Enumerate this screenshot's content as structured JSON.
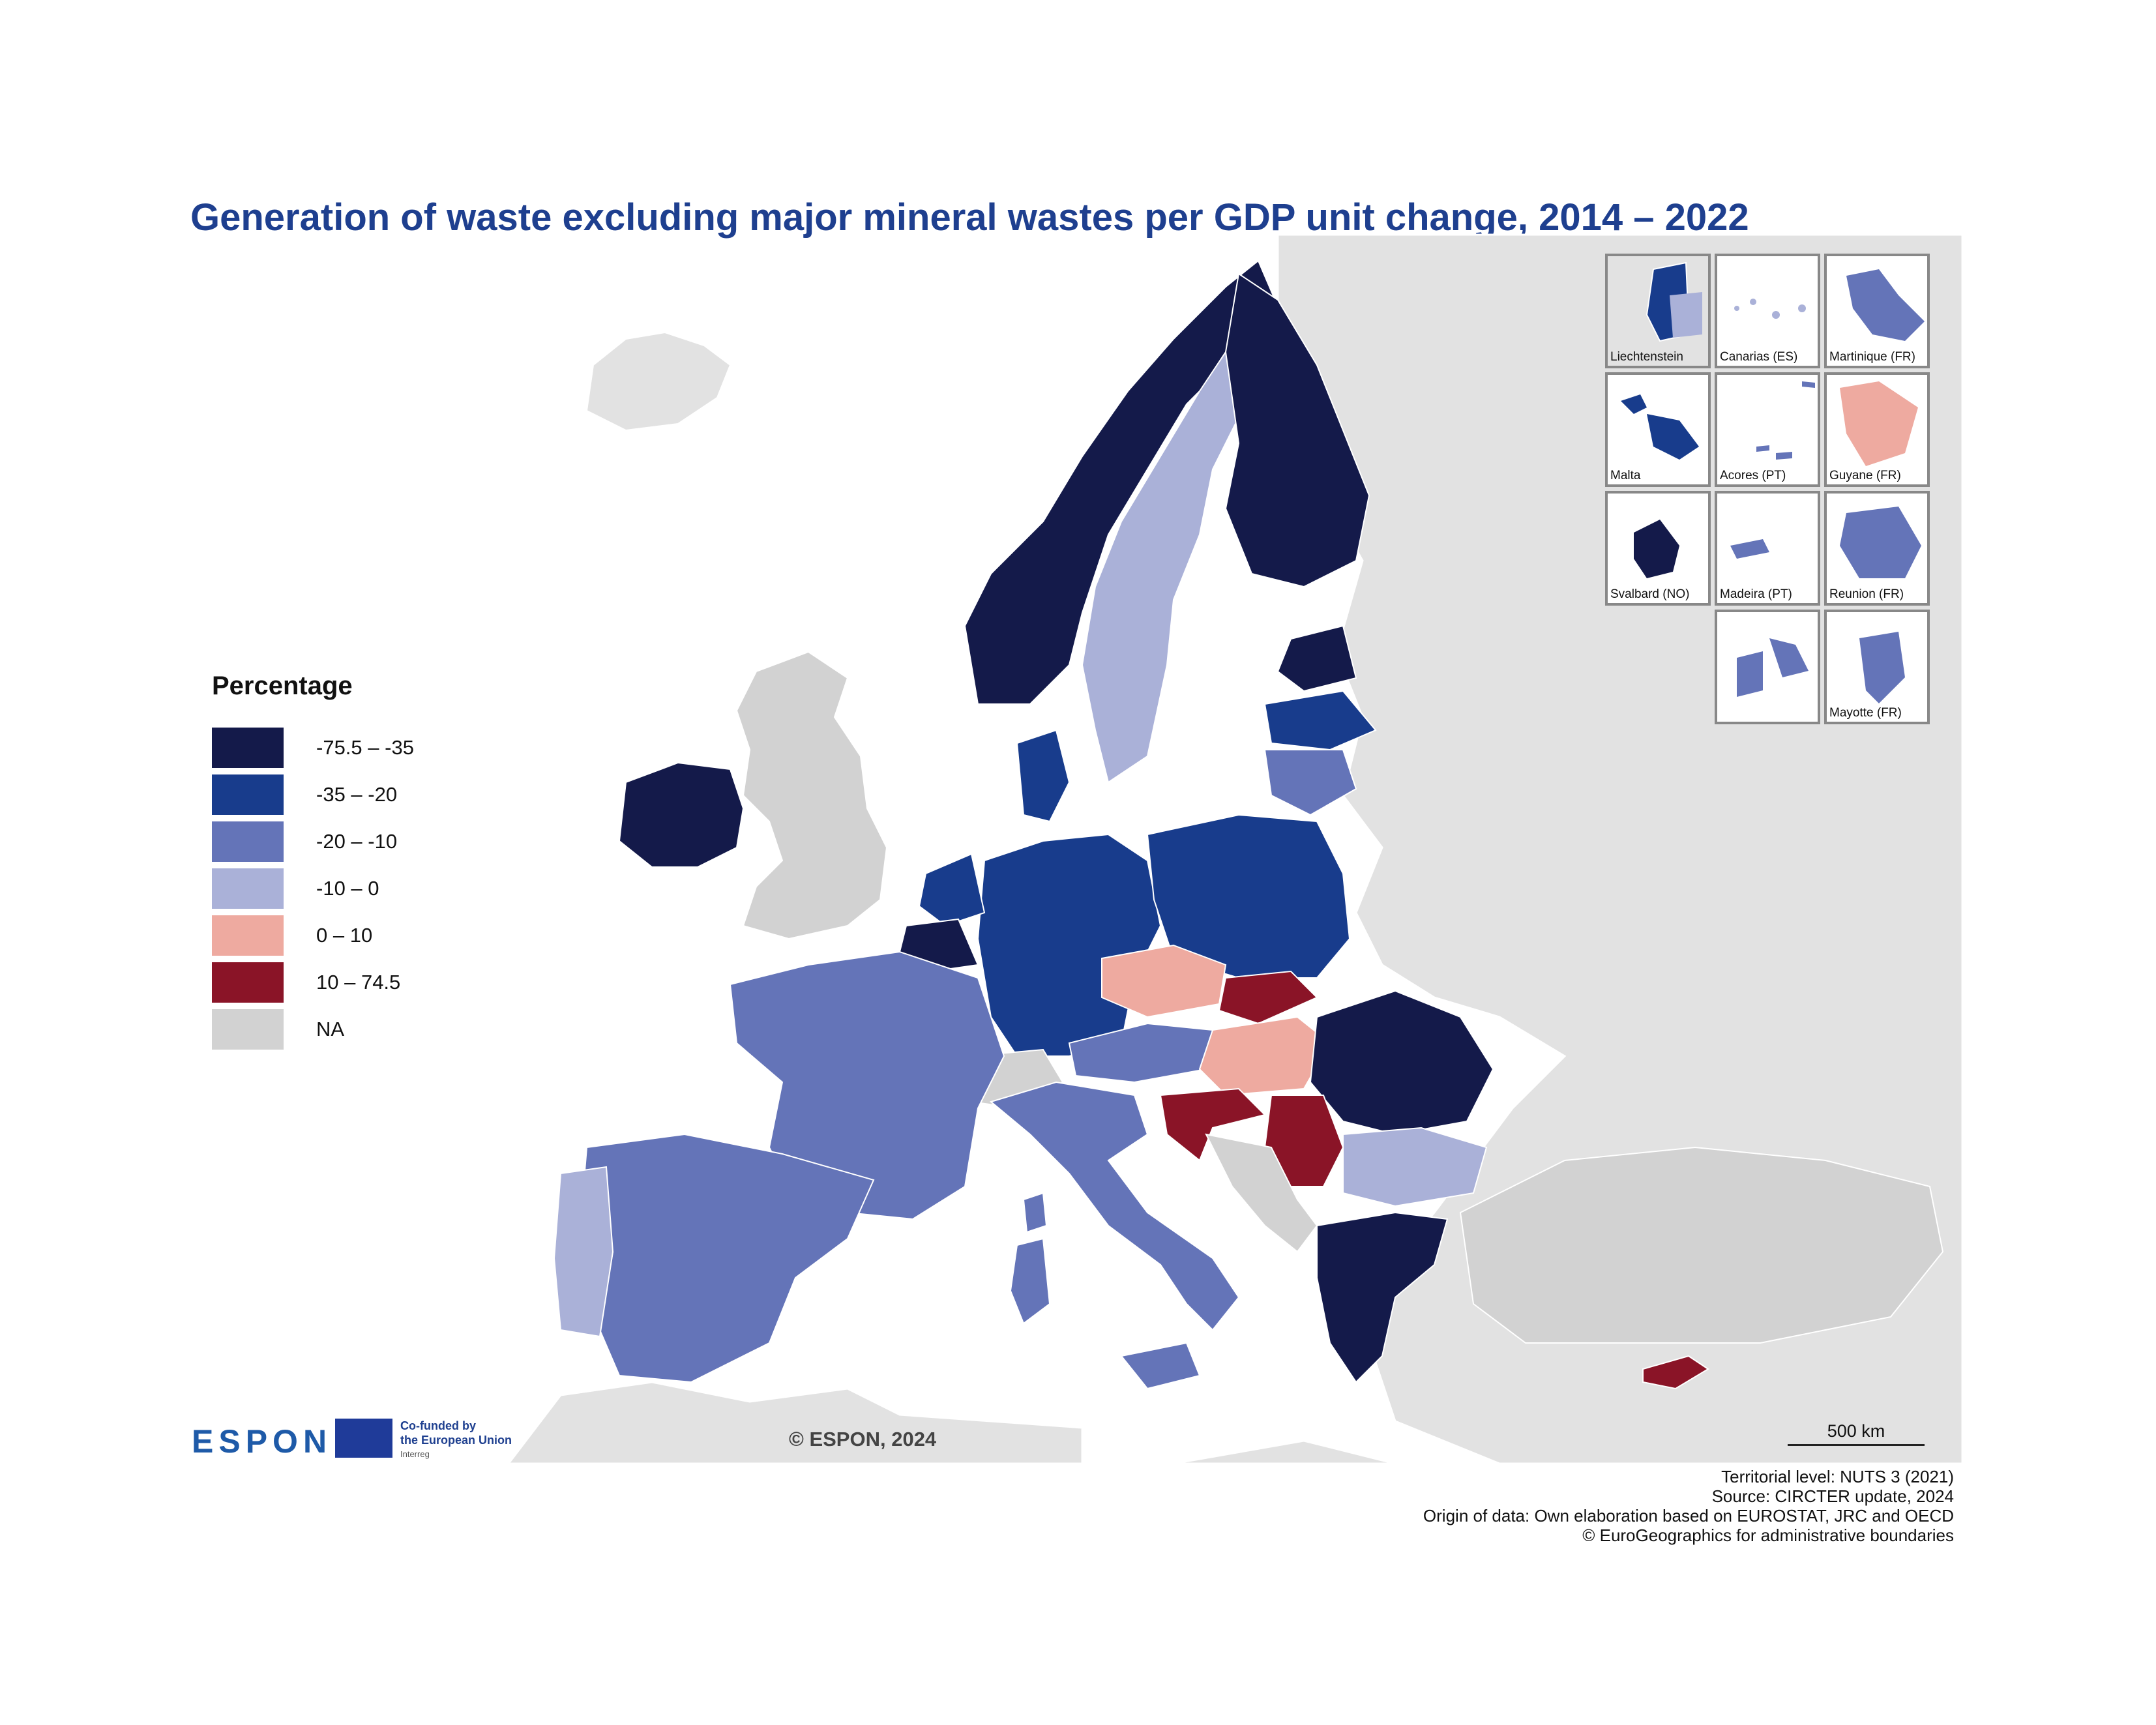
{
  "title": "Generation of waste excluding major mineral wastes per GDP unit change, 2014 – 2022",
  "legend": {
    "title": "Percentage",
    "classes": [
      {
        "label": "-75.5 – -35",
        "color": "#141a4a"
      },
      {
        "label": "-35 – -20",
        "color": "#183c8c"
      },
      {
        "label": "-20 – -10",
        "color": "#6474b8"
      },
      {
        "label": "-10 – 0",
        "color": "#aab1d8"
      },
      {
        "label": "0 – 10",
        "color": "#eeaaa0"
      },
      {
        "label": "10 – 74.5",
        "color": "#8a1427"
      },
      {
        "label": "NA",
        "color": "#d2d2d2"
      }
    ]
  },
  "colors": {
    "background_land": "#e2e2e2",
    "sea": "#ffffff",
    "na": "#d2d2d2",
    "title": "#1e3f8f"
  },
  "insets": [
    {
      "label": "Liechtenstein",
      "class": "-35 – -20"
    },
    {
      "label": "Canarias (ES)",
      "class": "-10 – 0"
    },
    {
      "label": "Martinique (FR)",
      "class": "-20 – -10"
    },
    {
      "label": "Malta",
      "class": "-35 – -20"
    },
    {
      "label": "Acores (PT)",
      "class": "-20 – -10"
    },
    {
      "label": "Guyane (FR)",
      "class": "0 – 10"
    },
    {
      "label": "Svalbard (NO)",
      "class": "-75.5 – -35"
    },
    {
      "label": "Madeira (PT)",
      "class": "-20 – -10"
    },
    {
      "label": "Reunion (FR)",
      "class": "-20 – -10"
    },
    {
      "label": "",
      "class": "-20 – -10"
    },
    {
      "label": "Mayotte (FR)",
      "class": "-20 – -10"
    }
  ],
  "regions": [
    {
      "name": "Norway",
      "class": "-75.5 – -35"
    },
    {
      "name": "Finland",
      "class": "-75.5 – -35"
    },
    {
      "name": "Sweden",
      "class": "-10 – 0"
    },
    {
      "name": "Estonia",
      "class": "-75.5 – -35"
    },
    {
      "name": "Latvia",
      "class": "-35 – -20"
    },
    {
      "name": "Lithuania",
      "class": "-20 – -10"
    },
    {
      "name": "Denmark",
      "class": "-35 – -20"
    },
    {
      "name": "Ireland",
      "class": "-75.5 – -35"
    },
    {
      "name": "Netherlands",
      "class": "-35 – -20"
    },
    {
      "name": "Belgium",
      "class": "-75.5 – -35"
    },
    {
      "name": "Germany",
      "class": "-35 – -20"
    },
    {
      "name": "Poland",
      "class": "-35 – -20"
    },
    {
      "name": "Czechia",
      "class": "0 – 10"
    },
    {
      "name": "Slovakia",
      "class": "10 – 74.5"
    },
    {
      "name": "Austria",
      "class": "-20 – -10"
    },
    {
      "name": "Hungary",
      "class": "0 – 10"
    },
    {
      "name": "Romania",
      "class": "-75.5 – -35"
    },
    {
      "name": "Bulgaria",
      "class": "-10 – 0"
    },
    {
      "name": "Serbia",
      "class": "10 – 74.5"
    },
    {
      "name": "Croatia",
      "class": "10 – 74.5"
    },
    {
      "name": "Slovenia",
      "class": "-75.5 – -35"
    },
    {
      "name": "Greece",
      "class": "-75.5 – -35"
    },
    {
      "name": "Cyprus",
      "class": "10 – 74.5"
    },
    {
      "name": "France",
      "class": "-20 – -10"
    },
    {
      "name": "Spain",
      "class": "-20 – -10"
    },
    {
      "name": "Portugal",
      "class": "-10 – 0"
    },
    {
      "name": "Italy",
      "class": "-20 – -10"
    },
    {
      "name": "United Kingdom",
      "class": "NA"
    },
    {
      "name": "Switzerland",
      "class": "NA"
    },
    {
      "name": "Türkiye",
      "class": "NA"
    },
    {
      "name": "Iceland",
      "class": "NA"
    }
  ],
  "copyright": "© ESPON, 2024",
  "scale_label": "500 km",
  "branding": {
    "espon": "ESPON",
    "eu_line1": "Co-funded by",
    "eu_line2": "the European Union",
    "eu_line3": "Interreg"
  },
  "footer": [
    "Territorial level: NUTS 3 (2021)",
    "Source: CIRCTER update, 2024",
    "Origin of data: Own elaboration based on EUROSTAT, JRC and OECD",
    "© EuroGeographics for administrative boundaries"
  ]
}
